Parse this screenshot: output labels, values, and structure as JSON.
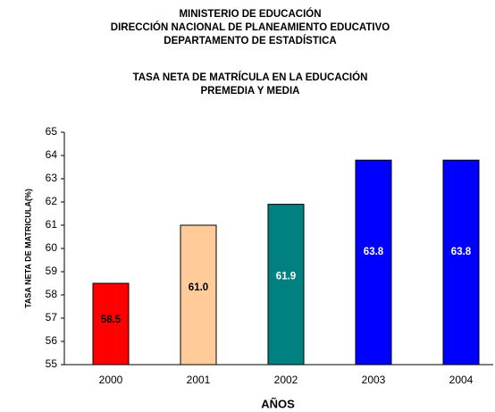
{
  "chart_data": {
    "type": "bar",
    "header": [
      "MINISTERIO DE EDUCACIÓN",
      "DIRECCIÓN NACIONAL DE PLANEAMIENTO EDUCATIVO",
      "DEPARTAMENTO DE ESTADÍSTICA"
    ],
    "title": [
      "TASA NETA DE MATRÍCULA EN LA EDUCACIÓN",
      "PREMEDIA Y MEDIA"
    ],
    "y_label": "TASA NETA DE MATRICULA(%)",
    "x_label": "AÑOS",
    "categories": [
      "2000",
      "2001",
      "2002",
      "2003",
      "2004"
    ],
    "values": [
      58.5,
      61.0,
      61.9,
      63.8,
      63.8
    ],
    "value_labels": [
      "58.5",
      "61.0",
      "61.9",
      "63.8",
      "63.8"
    ],
    "colors": [
      "#ff0000",
      "#ffcc99",
      "#008080",
      "#0000ff",
      "#0000ff"
    ],
    "label_colors": [
      "#000000",
      "#000000",
      "#ffffff",
      "#ffffff",
      "#ffffff"
    ],
    "ylim": [
      55,
      65
    ],
    "yticks": [
      55,
      56,
      57,
      58,
      59,
      60,
      61,
      62,
      63,
      64,
      65
    ],
    "grid": false
  }
}
